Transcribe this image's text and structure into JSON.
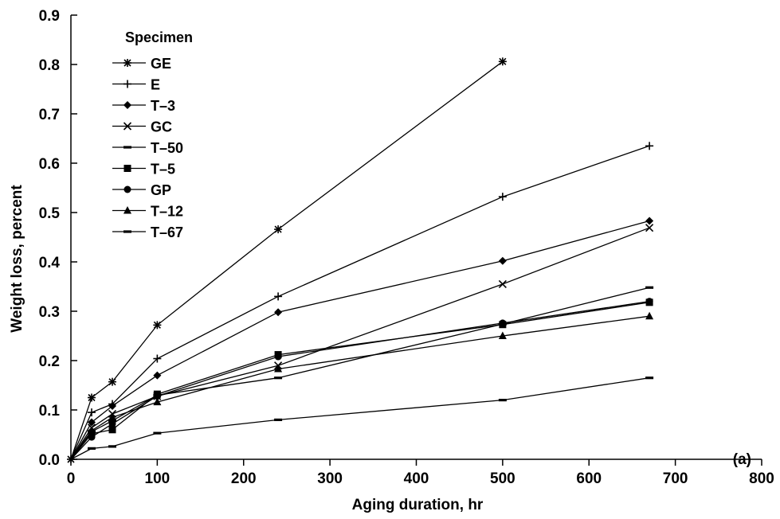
{
  "chart_data": {
    "type": "line",
    "panel_label": "(a)",
    "xlabel": "Aging duration, hr",
    "ylabel": "Weight loss, percent",
    "xlim": [
      0,
      800
    ],
    "ylim": [
      0,
      0.9
    ],
    "x_ticks": [
      "0",
      "100",
      "200",
      "300",
      "400",
      "500",
      "600",
      "700",
      "800"
    ],
    "y_ticks": [
      "0.0",
      "0.1",
      "0.2",
      "0.3",
      "0.4",
      "0.5",
      "0.6",
      "0.7",
      "0.8",
      "0.9"
    ],
    "grid": false,
    "legend_title": "Specimen",
    "legend_position": "top-left",
    "series": [
      {
        "name": "GE",
        "marker": "asterisk",
        "x": [
          0,
          24,
          48,
          100,
          240,
          500
        ],
        "values": [
          0,
          0.125,
          0.157,
          0.272,
          0.466,
          0.806
        ]
      },
      {
        "name": "E",
        "marker": "plus",
        "x": [
          0,
          24,
          48,
          100,
          240,
          500,
          670
        ],
        "values": [
          0,
          0.095,
          0.112,
          0.204,
          0.33,
          0.532,
          0.635
        ]
      },
      {
        "name": "T–3",
        "marker": "diamond",
        "x": [
          0,
          24,
          48,
          100,
          240,
          500,
          670
        ],
        "values": [
          0,
          0.075,
          0.108,
          0.17,
          0.298,
          0.402,
          0.483
        ]
      },
      {
        "name": "GC",
        "marker": "x",
        "x": [
          0,
          24,
          48,
          100,
          240,
          500,
          670
        ],
        "values": [
          0,
          0.064,
          0.092,
          0.128,
          0.19,
          0.355,
          0.469
        ]
      },
      {
        "name": "T–50",
        "marker": "dash",
        "x": [
          0,
          24,
          48,
          100,
          240,
          500,
          670
        ],
        "values": [
          0,
          0.056,
          0.078,
          0.13,
          0.165,
          0.274,
          0.348
        ]
      },
      {
        "name": "T–5",
        "marker": "square",
        "x": [
          0,
          24,
          48,
          100,
          240,
          500,
          670
        ],
        "values": [
          0,
          0.052,
          0.06,
          0.132,
          0.212,
          0.273,
          0.318
        ]
      },
      {
        "name": "GP",
        "marker": "circle",
        "x": [
          0,
          24,
          48,
          100,
          240,
          500,
          670
        ],
        "values": [
          0,
          0.045,
          0.072,
          0.128,
          0.208,
          0.276,
          0.32
        ]
      },
      {
        "name": "T–12",
        "marker": "triangle",
        "x": [
          0,
          24,
          48,
          100,
          240,
          500,
          670
        ],
        "values": [
          0,
          0.058,
          0.085,
          0.116,
          0.183,
          0.25,
          0.29
        ]
      },
      {
        "name": "T–67",
        "marker": "dash",
        "x": [
          0,
          24,
          48,
          100,
          240,
          500,
          670
        ],
        "values": [
          0,
          0.022,
          0.026,
          0.053,
          0.08,
          0.12,
          0.165
        ]
      }
    ]
  }
}
